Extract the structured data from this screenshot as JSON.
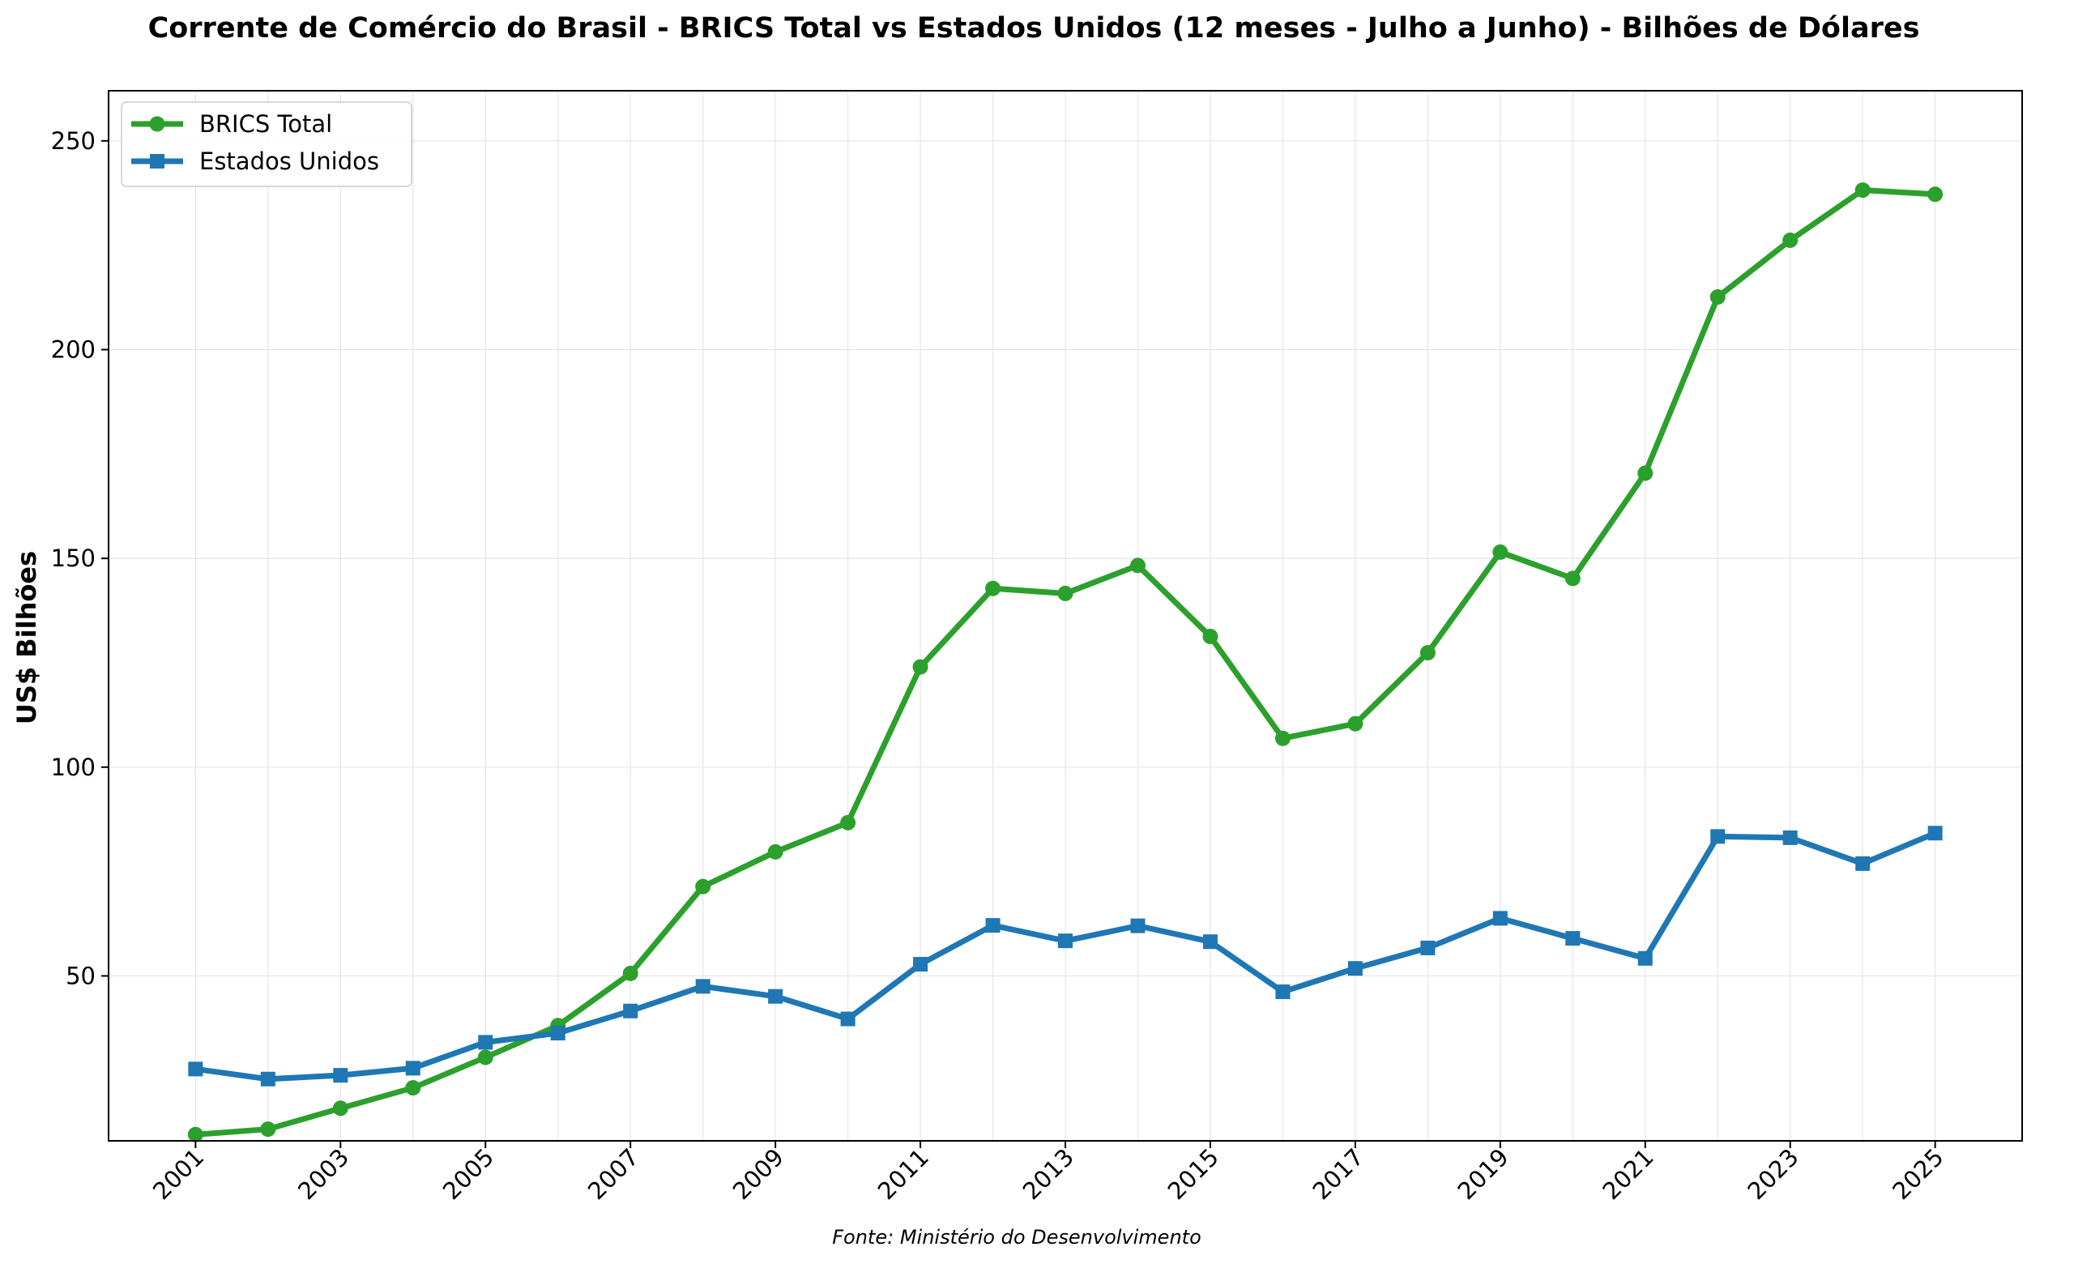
{
  "chart_data": {
    "type": "line",
    "title": "Corrente de Comércio do Brasil - BRICS Total vs Estados Unidos (12 meses - Julho a Junho) - Bilhões de Dólares",
    "xlabel": "",
    "ylabel": "US$ Bilhões",
    "source": "Fonte: Ministério do Desenvolvimento",
    "x": [
      2001,
      2002,
      2003,
      2004,
      2005,
      2006,
      2007,
      2008,
      2009,
      2010,
      2011,
      2012,
      2013,
      2014,
      2015,
      2016,
      2017,
      2018,
      2019,
      2020,
      2021,
      2022,
      2023,
      2024,
      2025
    ],
    "xticks": [
      "2001",
      "2003",
      "2005",
      "2007",
      "2009",
      "2011",
      "2013",
      "2015",
      "2017",
      "2019",
      "2021",
      "2023",
      "2025"
    ],
    "yticks": [
      "50",
      "100",
      "150",
      "200",
      "250"
    ],
    "xlim": [
      1999.8,
      2026.2
    ],
    "ylim": [
      10.5,
      262
    ],
    "grid": true,
    "legend_position": "top-left",
    "series": [
      {
        "name": "BRICS Total",
        "color": "#2ca02c",
        "marker": "circle",
        "values": [
          12.0,
          13.3,
          18.3,
          23.2,
          30.5,
          38.1,
          50.6,
          71.4,
          79.7,
          86.7,
          124.0,
          142.8,
          141.6,
          148.3,
          131.3,
          106.9,
          110.4,
          127.4,
          151.5,
          145.2,
          170.4,
          212.6,
          226.2,
          238.2,
          237.2
        ]
      },
      {
        "name": "Estados Unidos",
        "color": "#1f77b4",
        "marker": "square",
        "values": [
          27.7,
          25.3,
          26.2,
          27.9,
          34.1,
          36.3,
          41.6,
          47.5,
          45.1,
          39.7,
          52.8,
          62.1,
          58.4,
          62.0,
          58.2,
          46.2,
          51.8,
          56.7,
          63.8,
          59.0,
          54.2,
          83.4,
          83.1,
          76.9,
          84.2
        ]
      }
    ]
  }
}
